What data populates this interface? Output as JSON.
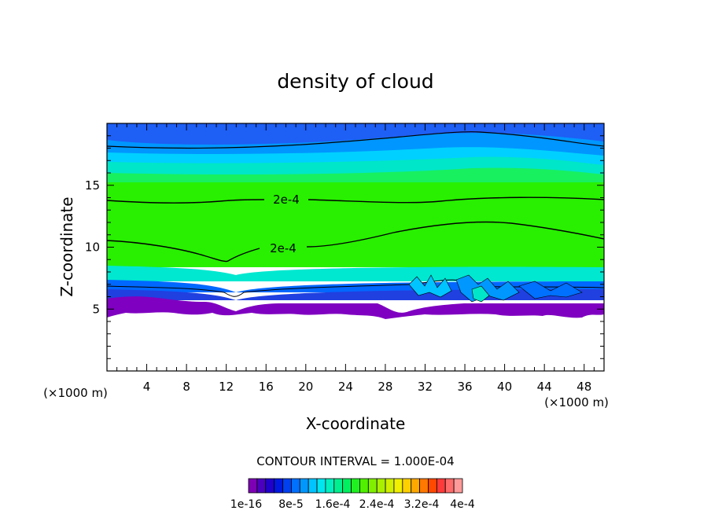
{
  "chart_data": {
    "type": "heatmap",
    "title": "density of cloud",
    "xlabel": "X-coordinate",
    "ylabel": "Z-coordinate",
    "x_unit_left": "(×1000 m)",
    "x_unit_right": "(×1000 m)",
    "xlim": [
      0,
      50
    ],
    "ylim": [
      0,
      20
    ],
    "x_ticks": [
      "4",
      "8",
      "12",
      "16",
      "20",
      "24",
      "28",
      "32",
      "36",
      "40",
      "44",
      "48"
    ],
    "y_ticks": [
      "5",
      "10",
      "15"
    ],
    "contour_interval_text": "CONTOUR INTERVAL = 1.000E-04",
    "colorbar_labels": [
      "1e-16",
      "8e-5",
      "1.6e-4",
      "2.4e-4",
      "3.2e-4",
      "4e-4"
    ],
    "colorbar_colors": [
      "#7e00b4",
      "#4b00c0",
      "#2000cc",
      "#0018e0",
      "#0040f0",
      "#0070ff",
      "#0098ff",
      "#00c4ff",
      "#00e6f0",
      "#00f0c0",
      "#00f090",
      "#00f060",
      "#20f020",
      "#50f000",
      "#80f000",
      "#a8f000",
      "#d0f000",
      "#f0f000",
      "#ffd000",
      "#ffa800",
      "#ff7800",
      "#ff4800",
      "#ff3a3a",
      "#ff6a6a",
      "#ff9a9a"
    ],
    "contour_labels": [
      "2e-4",
      "2e-4"
    ],
    "cloud_base_z": 5,
    "cloud_top_z": 20,
    "band_colors": {
      "top": "#1e5ff5",
      "upper": "#0096ff",
      "mid_upper": "#00d0ff",
      "teal": "#00e6c8",
      "green_light": "#18f060",
      "core": "#28f000",
      "below_core": "#00e8d0",
      "blue_low": "#0068ff",
      "blue_dark": "#2040e0",
      "base": "#7f00c0"
    }
  }
}
